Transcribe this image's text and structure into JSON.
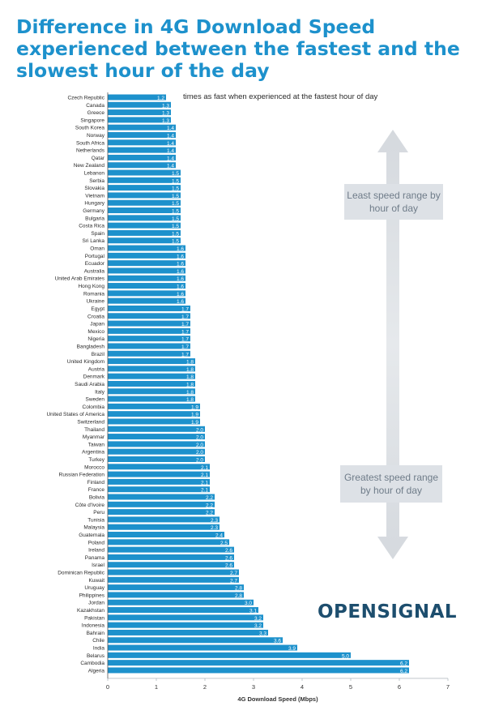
{
  "title": "Difference in 4G Download Speed experienced between the fastest and the slowest hour of the day",
  "annotation": "times as fast when experienced at the fastest hour of day",
  "band_labels": {
    "least": "Least speed range by hour of day",
    "greatest": "Greatest speed range by hour of day"
  },
  "brand": "OPENSIGNAL",
  "colors": {
    "bar": "#1d91cc",
    "title": "#1d91cc",
    "band": "#dde1e6",
    "band_text": "#6f7c89",
    "logo": "#1d4e6e"
  },
  "chart_data": {
    "type": "bar",
    "orientation": "horizontal",
    "xlabel": "4G Download Speed (Mbps)",
    "xlim": [
      0,
      7
    ],
    "xticks": [
      0,
      1,
      2,
      3,
      4,
      5,
      6,
      7
    ],
    "categories": [
      "Czech Republic",
      "Canada",
      "Greece",
      "Singapore",
      "South Korea",
      "Norway",
      "South Africa",
      "Netherlands",
      "Qatar",
      "New Zealand",
      "Lebanon",
      "Serbia",
      "Slovakia",
      "Vietnam",
      "Hungary",
      "Germany",
      "Bulgaria",
      "Costa Rica",
      "Spain",
      "Sri Lanka",
      "Oman",
      "Portugal",
      "Ecuador",
      "Australia",
      "United Arab Emirates",
      "Hong Kong",
      "Romania",
      "Ukraine",
      "Egypt",
      "Croatia",
      "Japan",
      "Mexico",
      "Nigeria",
      "Bangladesh",
      "Brazil",
      "United Kingdom",
      "Austria",
      "Denmark",
      "Saudi Arabia",
      "Italy",
      "Sweden",
      "Colombia",
      "United States of America",
      "Switzerland",
      "Thailand",
      "Myanmar",
      "Taiwan",
      "Argentina",
      "Turkey",
      "Morocco",
      "Russian Federation",
      "Finland",
      "France",
      "Bolivia",
      "Côte d'Ivoire",
      "Peru",
      "Tunisia",
      "Malaysia",
      "Guatemala",
      "Poland",
      "Ireland",
      "Panama",
      "Israel",
      "Dominican Republic",
      "Kuwait",
      "Uruguay",
      "Philippines",
      "Jordan",
      "Kazakhstan",
      "Pakistan",
      "Indonesia",
      "Bahrain",
      "Chile",
      "India",
      "Belarus",
      "Cambodia",
      "Algeria"
    ],
    "values": [
      1.2,
      1.3,
      1.3,
      1.3,
      1.4,
      1.4,
      1.4,
      1.4,
      1.4,
      1.4,
      1.5,
      1.5,
      1.5,
      1.5,
      1.5,
      1.5,
      1.5,
      1.5,
      1.5,
      1.5,
      1.6,
      1.6,
      1.6,
      1.6,
      1.6,
      1.6,
      1.6,
      1.6,
      1.7,
      1.7,
      1.7,
      1.7,
      1.7,
      1.7,
      1.7,
      1.8,
      1.8,
      1.8,
      1.8,
      1.8,
      1.8,
      1.9,
      1.9,
      1.9,
      2.0,
      2.0,
      2.0,
      2.0,
      2.0,
      2.1,
      2.1,
      2.1,
      2.1,
      2.2,
      2.2,
      2.2,
      2.3,
      2.3,
      2.4,
      2.5,
      2.6,
      2.6,
      2.6,
      2.7,
      2.7,
      2.8,
      2.8,
      3.0,
      3.1,
      3.2,
      3.2,
      3.3,
      3.6,
      3.9,
      5.0,
      6.2,
      6.2
    ],
    "value_labels": [
      "1.2",
      "1.3",
      "1.3",
      "1.3",
      "1.4",
      "1.4",
      "1.4",
      "1.4",
      "1.4",
      "1.4",
      "1.5",
      "1.5",
      "1.5",
      "1.5",
      "1.5",
      "1.5",
      "1.5",
      "1.5",
      "1.5",
      "1.5",
      "1.6",
      "1.6",
      "1.6",
      "1.6",
      "1.6",
      "1.6",
      "1.6",
      "1.6",
      "1.7",
      "1.7",
      "1.7",
      "1.7",
      "1.7",
      "1.7",
      "1.7",
      "1.8",
      "1.8",
      "1.8",
      "1.8",
      "1.8",
      "1.8",
      "1.9",
      "1.9",
      "1.9",
      "2.0",
      "2.0",
      "2.0",
      "2.0",
      "2.0",
      "2.1",
      "2.1",
      "2.1",
      "2.1",
      "2.2",
      "2.2",
      "2.2",
      "2.3",
      "2.3",
      "2.4",
      "2.5",
      "2.6",
      "2.6",
      "2.6",
      "2.7",
      "2.7",
      "2.8",
      "2.8",
      "3.0",
      "3.1",
      "3.2",
      "3.2",
      "3.3",
      "3.6",
      "3.9",
      "5.0",
      "6.2",
      "6.2"
    ],
    "grid": false,
    "legend": "none"
  }
}
